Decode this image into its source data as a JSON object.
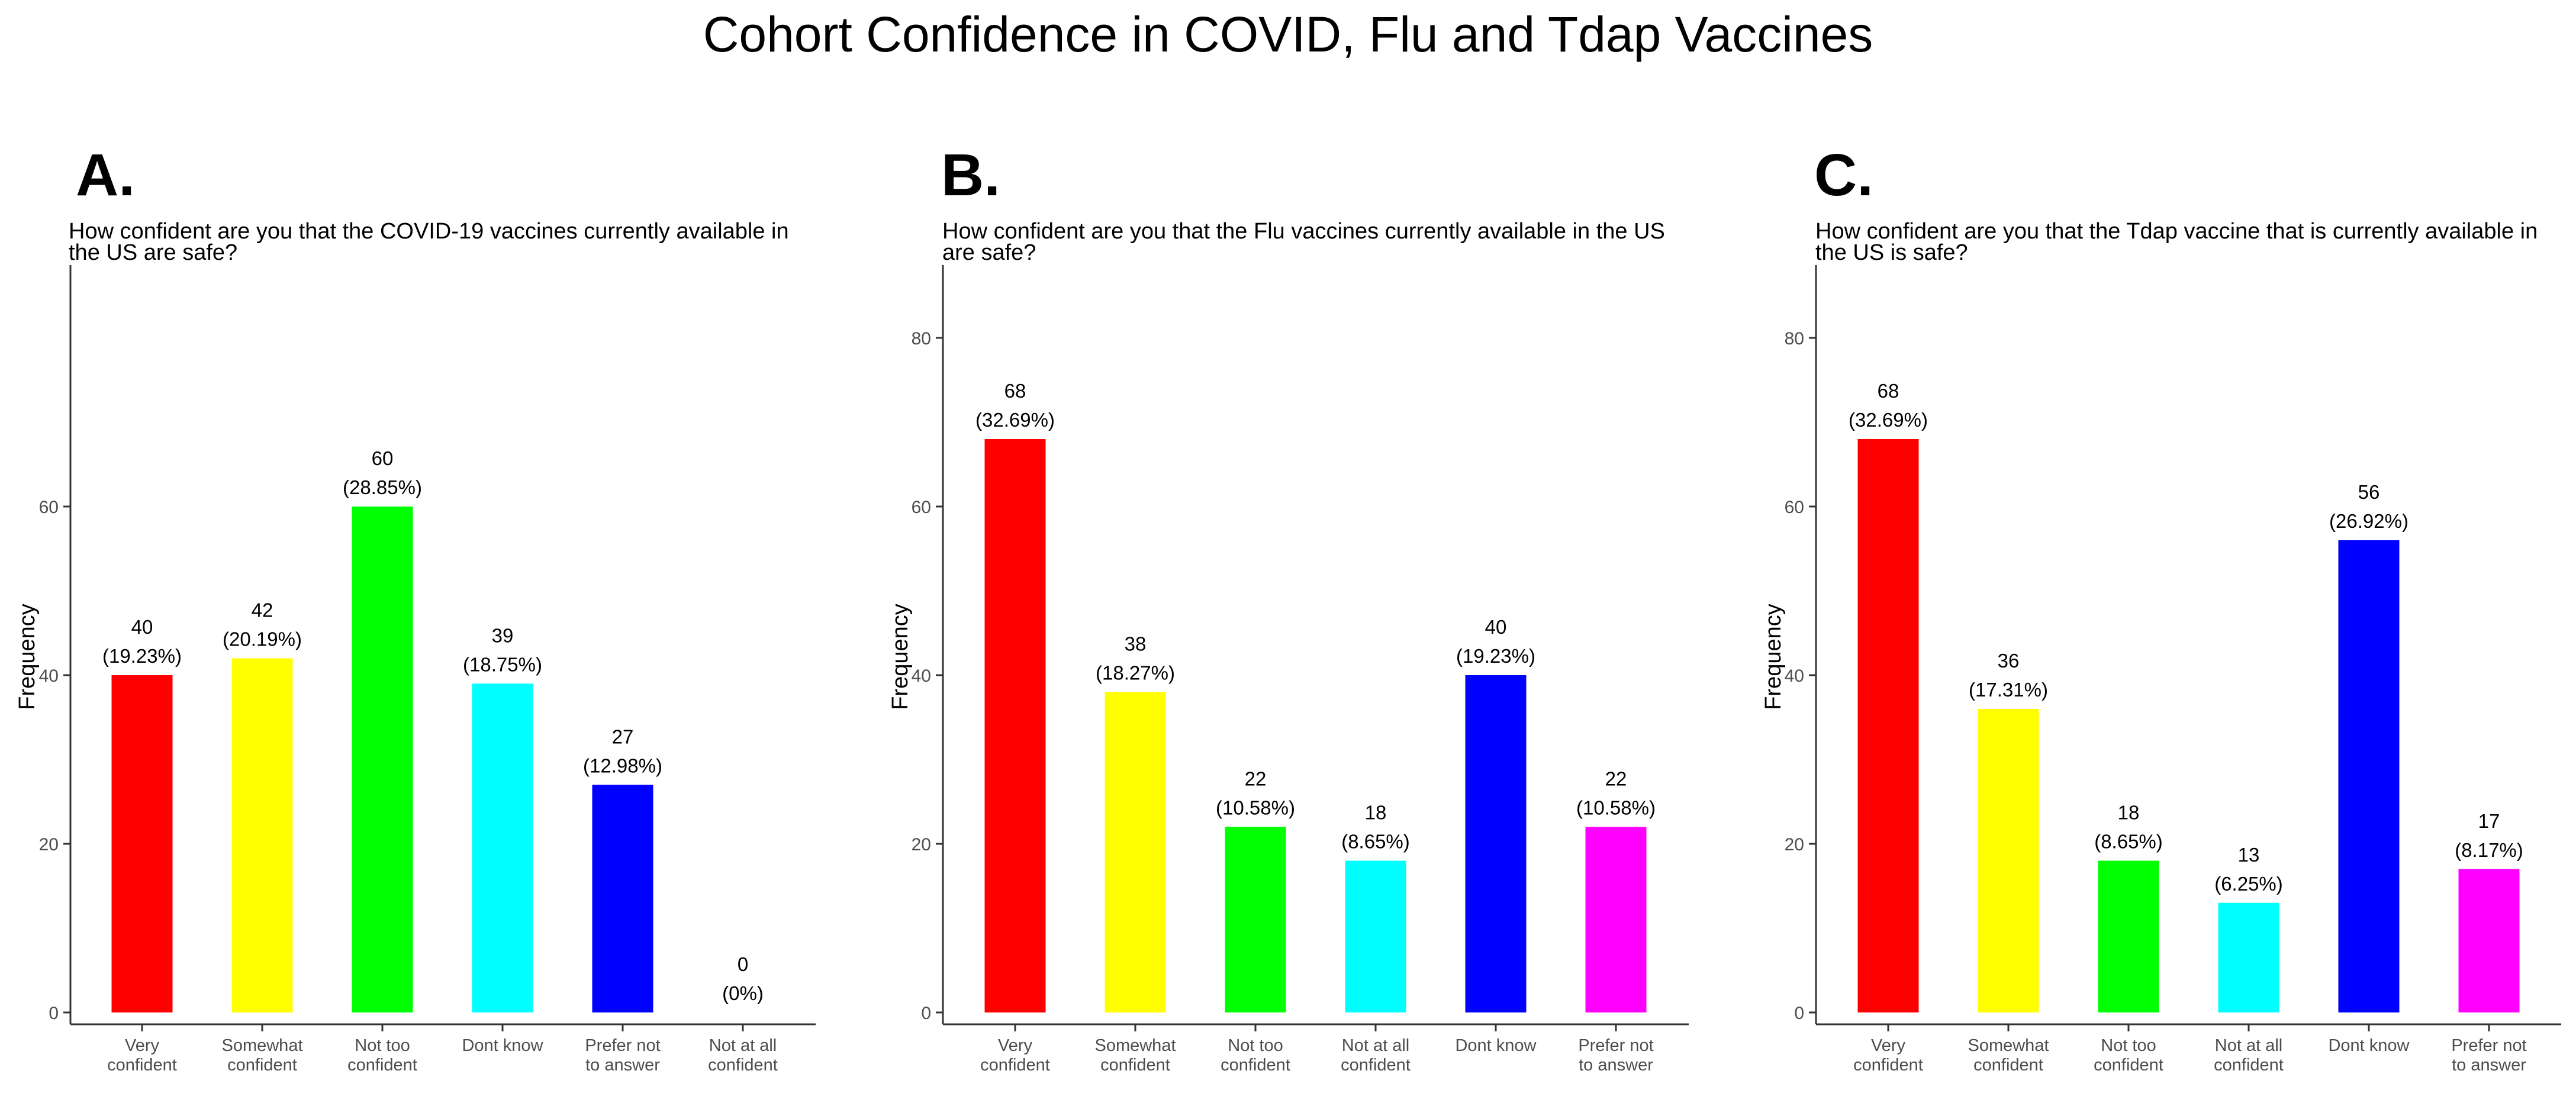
{
  "title": "Cohort Confidence in COVID, Flu and Tdap Vaccines",
  "chart_data": [
    {
      "type": "bar",
      "panel_label": "A.",
      "title_lines": [
        "How confident are you that the COVID-19 vaccines currently available in",
        "the US are safe?"
      ],
      "xlabel": "",
      "ylabel": "Frequency",
      "ylim": [
        0,
        88
      ],
      "yticks": [
        0,
        20,
        40,
        60
      ],
      "categories": [
        [
          "Very",
          "confident"
        ],
        [
          "Somewhat",
          "confident"
        ],
        [
          "Not too",
          "confident"
        ],
        [
          "Dont know"
        ],
        [
          "Prefer not",
          "to answer"
        ],
        [
          "Not at all",
          "confident"
        ]
      ],
      "values": [
        40,
        42,
        60,
        39,
        27,
        0
      ],
      "percent_labels": [
        "(19.23%)",
        "(20.19%)",
        "(28.85%)",
        "(18.75%)",
        "(12.98%)",
        "(0%)"
      ],
      "colors": [
        "#ff0000",
        "#ffff00",
        "#00ff00",
        "#00ffff",
        "#0000ff",
        "#ff00ff"
      ]
    },
    {
      "type": "bar",
      "panel_label": "B.",
      "title_lines": [
        "How confident are you that the Flu vaccines currently available in the US",
        "are safe?"
      ],
      "xlabel": "",
      "ylabel": "Frequency",
      "ylim": [
        0,
        89
      ],
      "yticks": [
        0,
        20,
        40,
        60,
        80
      ],
      "categories": [
        [
          "Very",
          "confident"
        ],
        [
          "Somewhat",
          "confident"
        ],
        [
          "Not too",
          "confident"
        ],
        [
          "Not at all",
          "confident"
        ],
        [
          "Dont know"
        ],
        [
          "Prefer not",
          "to answer"
        ]
      ],
      "values": [
        68,
        38,
        22,
        18,
        40,
        22
      ],
      "percent_labels": [
        "(32.69%)",
        "(18.27%)",
        "(10.58%)",
        "(8.65%)",
        "(19.23%)",
        "(10.58%)"
      ],
      "colors": [
        "#ff0000",
        "#ffff00",
        "#00ff00",
        "#00ffff",
        "#0000ff",
        "#ff00ff"
      ]
    },
    {
      "type": "bar",
      "panel_label": "C.",
      "title_lines": [
        "How confident are you that the Tdap vaccine that is currently available in",
        "the US is safe?"
      ],
      "xlabel": "",
      "ylabel": "Frequency",
      "ylim": [
        0,
        89
      ],
      "yticks": [
        0,
        20,
        40,
        60,
        80
      ],
      "categories": [
        [
          "Very",
          "confident"
        ],
        [
          "Somewhat",
          "confident"
        ],
        [
          "Not too",
          "confident"
        ],
        [
          "Not at all",
          "confident"
        ],
        [
          "Dont know"
        ],
        [
          "Prefer not",
          "to answer"
        ]
      ],
      "values": [
        68,
        36,
        18,
        13,
        56,
        17
      ],
      "percent_labels": [
        "(32.69%)",
        "(17.31%)",
        "(8.65%)",
        "(6.25%)",
        "(26.92%)",
        "(8.17%)"
      ],
      "colors": [
        "#ff0000",
        "#ffff00",
        "#00ff00",
        "#00ffff",
        "#0000ff",
        "#ff00ff"
      ]
    }
  ]
}
